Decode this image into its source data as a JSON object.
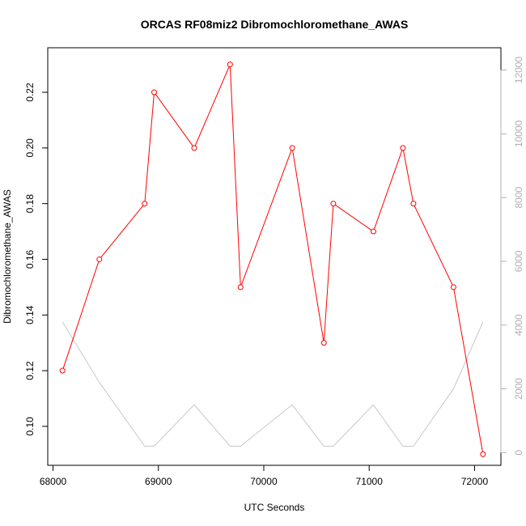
{
  "chart_data": {
    "type": "line",
    "title": "ORCAS RF08miz2 Dibromochloromethane_AWAS",
    "xlabel": "UTC Seconds",
    "ylabel": "Dibromochloromethane_AWAS",
    "xlim": [
      67950,
      72250
    ],
    "ylim": [
      0.086,
      0.236
    ],
    "y2lim": [
      -400,
      12700
    ],
    "x_ticks": [
      68000,
      69000,
      70000,
      71000,
      72000
    ],
    "y_ticks": [
      0.1,
      0.12,
      0.14,
      0.16,
      0.18,
      0.2,
      0.22
    ],
    "y_tick_labels": [
      "0.10",
      "0.12",
      "0.14",
      "0.16",
      "0.18",
      "0.20",
      "0.22"
    ],
    "y2_ticks": [
      0,
      2000,
      4000,
      6000,
      8000,
      10000,
      12000
    ],
    "colors": {
      "primary": "#ff0000",
      "secondary": "#c8c8c8",
      "right_axis": "#b0b0b0",
      "frame": "#000000"
    },
    "series": [
      {
        "axis": "left",
        "style": "line-points",
        "x": [
          68090,
          68440,
          68870,
          68960,
          69340,
          69680,
          69780,
          70270,
          70570,
          70660,
          71040,
          71320,
          71420,
          71800,
          72080
        ],
        "y": [
          0.12,
          0.16,
          0.18,
          0.22,
          0.2,
          0.23,
          0.15,
          0.2,
          0.13,
          0.18,
          0.17,
          0.2,
          0.18,
          0.15,
          0.09
        ]
      },
      {
        "axis": "right",
        "style": "line",
        "x": [
          68090,
          68440,
          68870,
          68960,
          69340,
          69680,
          69780,
          70270,
          70570,
          70660,
          71040,
          71320,
          71420,
          71800,
          72080
        ],
        "y": [
          4100,
          2200,
          200,
          200,
          1500,
          200,
          200,
          1500,
          200,
          200,
          1500,
          200,
          200,
          2000,
          4100
        ]
      }
    ]
  }
}
